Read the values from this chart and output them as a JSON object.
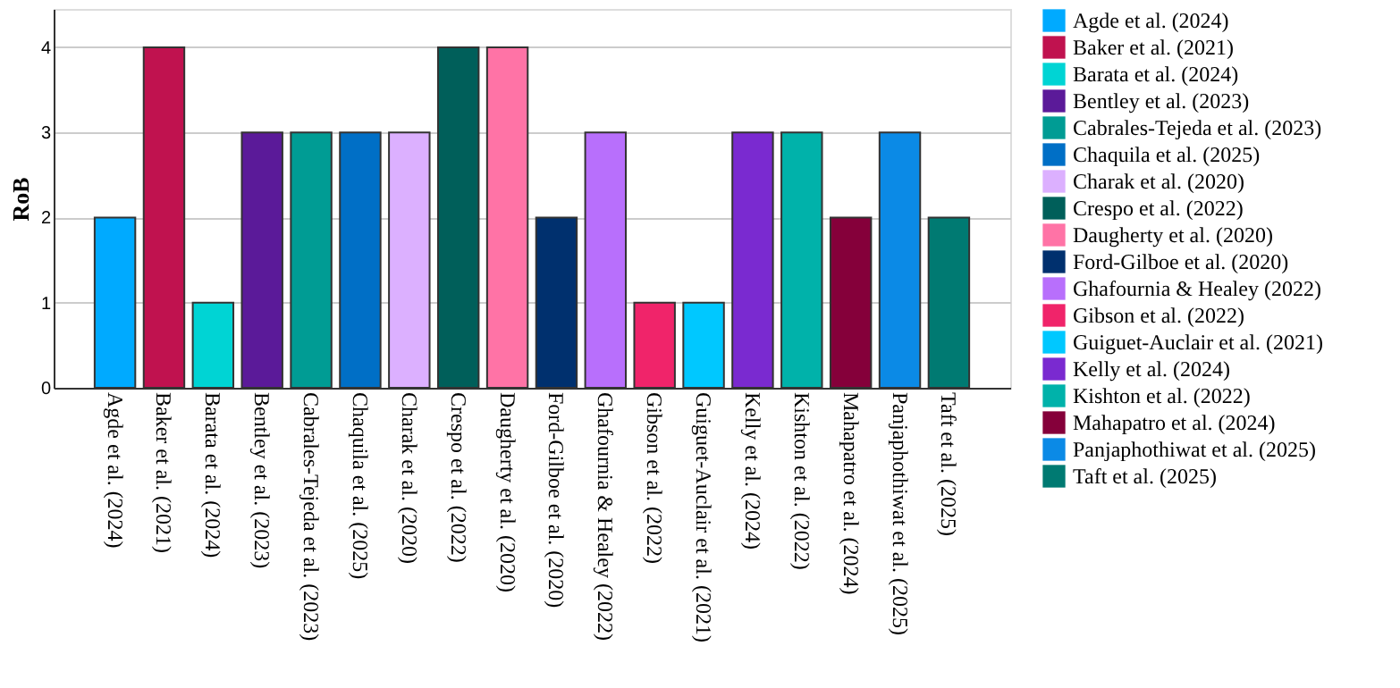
{
  "chart_data": {
    "type": "bar",
    "ylabel": "RoB",
    "categories": [
      "Agde et al. (2024)",
      "Baker et al. (2021)",
      "Barata et al. (2024)",
      "Bentley et al. (2023)",
      "Cabrales-Tejeda et al. (2023)",
      "Chaquila et al. (2025)",
      "Charak et al. (2020)",
      "Crespo et al. (2022)",
      "Daugherty et al. (2020)",
      "Ford-Gilboe et al. (2020)",
      "Ghafournia & Healey (2022)",
      "Gibson et al. (2022)",
      "Guiguet-Auclair et al. (2021)",
      "Kelly et al. (2024)",
      "Kishton et al. (2022)",
      "Mahapatro et al. (2024)",
      "Panjaphothiwat et al. (2025)",
      "Taft et al. (2025)"
    ],
    "series": [
      {
        "name": "Agde et al. (2024)",
        "color": "#00aaff",
        "values": [
          2,
          null,
          null,
          null,
          null,
          null,
          null,
          null,
          null,
          null,
          null,
          null,
          null,
          null,
          null,
          null,
          null,
          null
        ]
      },
      {
        "name": "Baker et al. (2021)",
        "color": "#c0124f",
        "values": [
          null,
          4,
          null,
          null,
          null,
          null,
          null,
          null,
          null,
          null,
          null,
          null,
          null,
          null,
          null,
          null,
          null,
          null
        ]
      },
      {
        "name": "Barata et al. (2024)",
        "color": "#00d4d4",
        "values": [
          null,
          null,
          1,
          null,
          null,
          null,
          null,
          null,
          null,
          null,
          null,
          null,
          null,
          null,
          null,
          null,
          null,
          null
        ]
      },
      {
        "name": "Bentley et al. (2023)",
        "color": "#5b1a99",
        "values": [
          null,
          null,
          null,
          3,
          null,
          null,
          null,
          null,
          null,
          null,
          null,
          null,
          null,
          null,
          null,
          null,
          null,
          null
        ]
      },
      {
        "name": "Cabrales-Tejeda et al. (2023)",
        "color": "#009c94",
        "values": [
          null,
          null,
          null,
          null,
          3,
          null,
          null,
          null,
          null,
          null,
          null,
          null,
          null,
          null,
          null,
          null,
          null,
          null
        ]
      },
      {
        "name": "Chaquila et al. (2025)",
        "color": "#006fc6",
        "values": [
          null,
          null,
          null,
          null,
          null,
          3,
          null,
          null,
          null,
          null,
          null,
          null,
          null,
          null,
          null,
          null,
          null,
          null
        ]
      },
      {
        "name": "Charak et al. (2020)",
        "color": "#dcb0ff",
        "values": [
          null,
          null,
          null,
          null,
          null,
          null,
          3,
          null,
          null,
          null,
          null,
          null,
          null,
          null,
          null,
          null,
          null,
          null
        ]
      },
      {
        "name": "Crespo et al. (2022)",
        "color": "#005f5a",
        "values": [
          null,
          null,
          null,
          null,
          null,
          null,
          null,
          4,
          null,
          null,
          null,
          null,
          null,
          null,
          null,
          null,
          null,
          null
        ]
      },
      {
        "name": "Daugherty et al. (2020)",
        "color": "#ff73a6",
        "values": [
          null,
          null,
          null,
          null,
          null,
          null,
          null,
          null,
          4,
          null,
          null,
          null,
          null,
          null,
          null,
          null,
          null,
          null
        ]
      },
      {
        "name": "Ford-Gilboe et al. (2020)",
        "color": "#00306e",
        "values": [
          null,
          null,
          null,
          null,
          null,
          null,
          null,
          null,
          null,
          2,
          null,
          null,
          null,
          null,
          null,
          null,
          null,
          null
        ]
      },
      {
        "name": "Ghafournia & Healey (2022)",
        "color": "#b86ffc",
        "values": [
          null,
          null,
          null,
          null,
          null,
          null,
          null,
          null,
          null,
          null,
          3,
          null,
          null,
          null,
          null,
          null,
          null,
          null
        ]
      },
      {
        "name": "Gibson et al. (2022)",
        "color": "#f0246a",
        "values": [
          null,
          null,
          null,
          null,
          null,
          null,
          null,
          null,
          null,
          null,
          null,
          1,
          null,
          null,
          null,
          null,
          null,
          null
        ]
      },
      {
        "name": "Guiguet-Auclair et al. (2021)",
        "color": "#00c8ff",
        "values": [
          null,
          null,
          null,
          null,
          null,
          null,
          null,
          null,
          null,
          null,
          null,
          null,
          1,
          null,
          null,
          null,
          null,
          null
        ]
      },
      {
        "name": "Kelly et al. (2024)",
        "color": "#7a2ad0",
        "values": [
          null,
          null,
          null,
          null,
          null,
          null,
          null,
          null,
          null,
          null,
          null,
          null,
          null,
          3,
          null,
          null,
          null,
          null
        ]
      },
      {
        "name": "Kishton et al. (2022)",
        "color": "#00b2aa",
        "values": [
          null,
          null,
          null,
          null,
          null,
          null,
          null,
          null,
          null,
          null,
          null,
          null,
          null,
          null,
          3,
          null,
          null,
          null
        ]
      },
      {
        "name": "Mahapatro et al. (2024)",
        "color": "#85003a",
        "values": [
          null,
          null,
          null,
          null,
          null,
          null,
          null,
          null,
          null,
          null,
          null,
          null,
          null,
          null,
          null,
          2,
          null,
          null
        ]
      },
      {
        "name": "Panjaphothiwat et al. (2025)",
        "color": "#0b8ae6",
        "values": [
          null,
          null,
          null,
          null,
          null,
          null,
          null,
          null,
          null,
          null,
          null,
          null,
          null,
          null,
          null,
          null,
          3,
          null
        ]
      },
      {
        "name": "Taft et al. (2025)",
        "color": "#007a72",
        "values": [
          null,
          null,
          null,
          null,
          null,
          null,
          null,
          null,
          null,
          null,
          null,
          null,
          null,
          null,
          null,
          null,
          null,
          2
        ]
      }
    ],
    "ylim": [
      0,
      4.45
    ],
    "yticks": [
      0,
      1,
      2,
      3,
      4
    ],
    "grid": "y",
    "legend": "right"
  }
}
